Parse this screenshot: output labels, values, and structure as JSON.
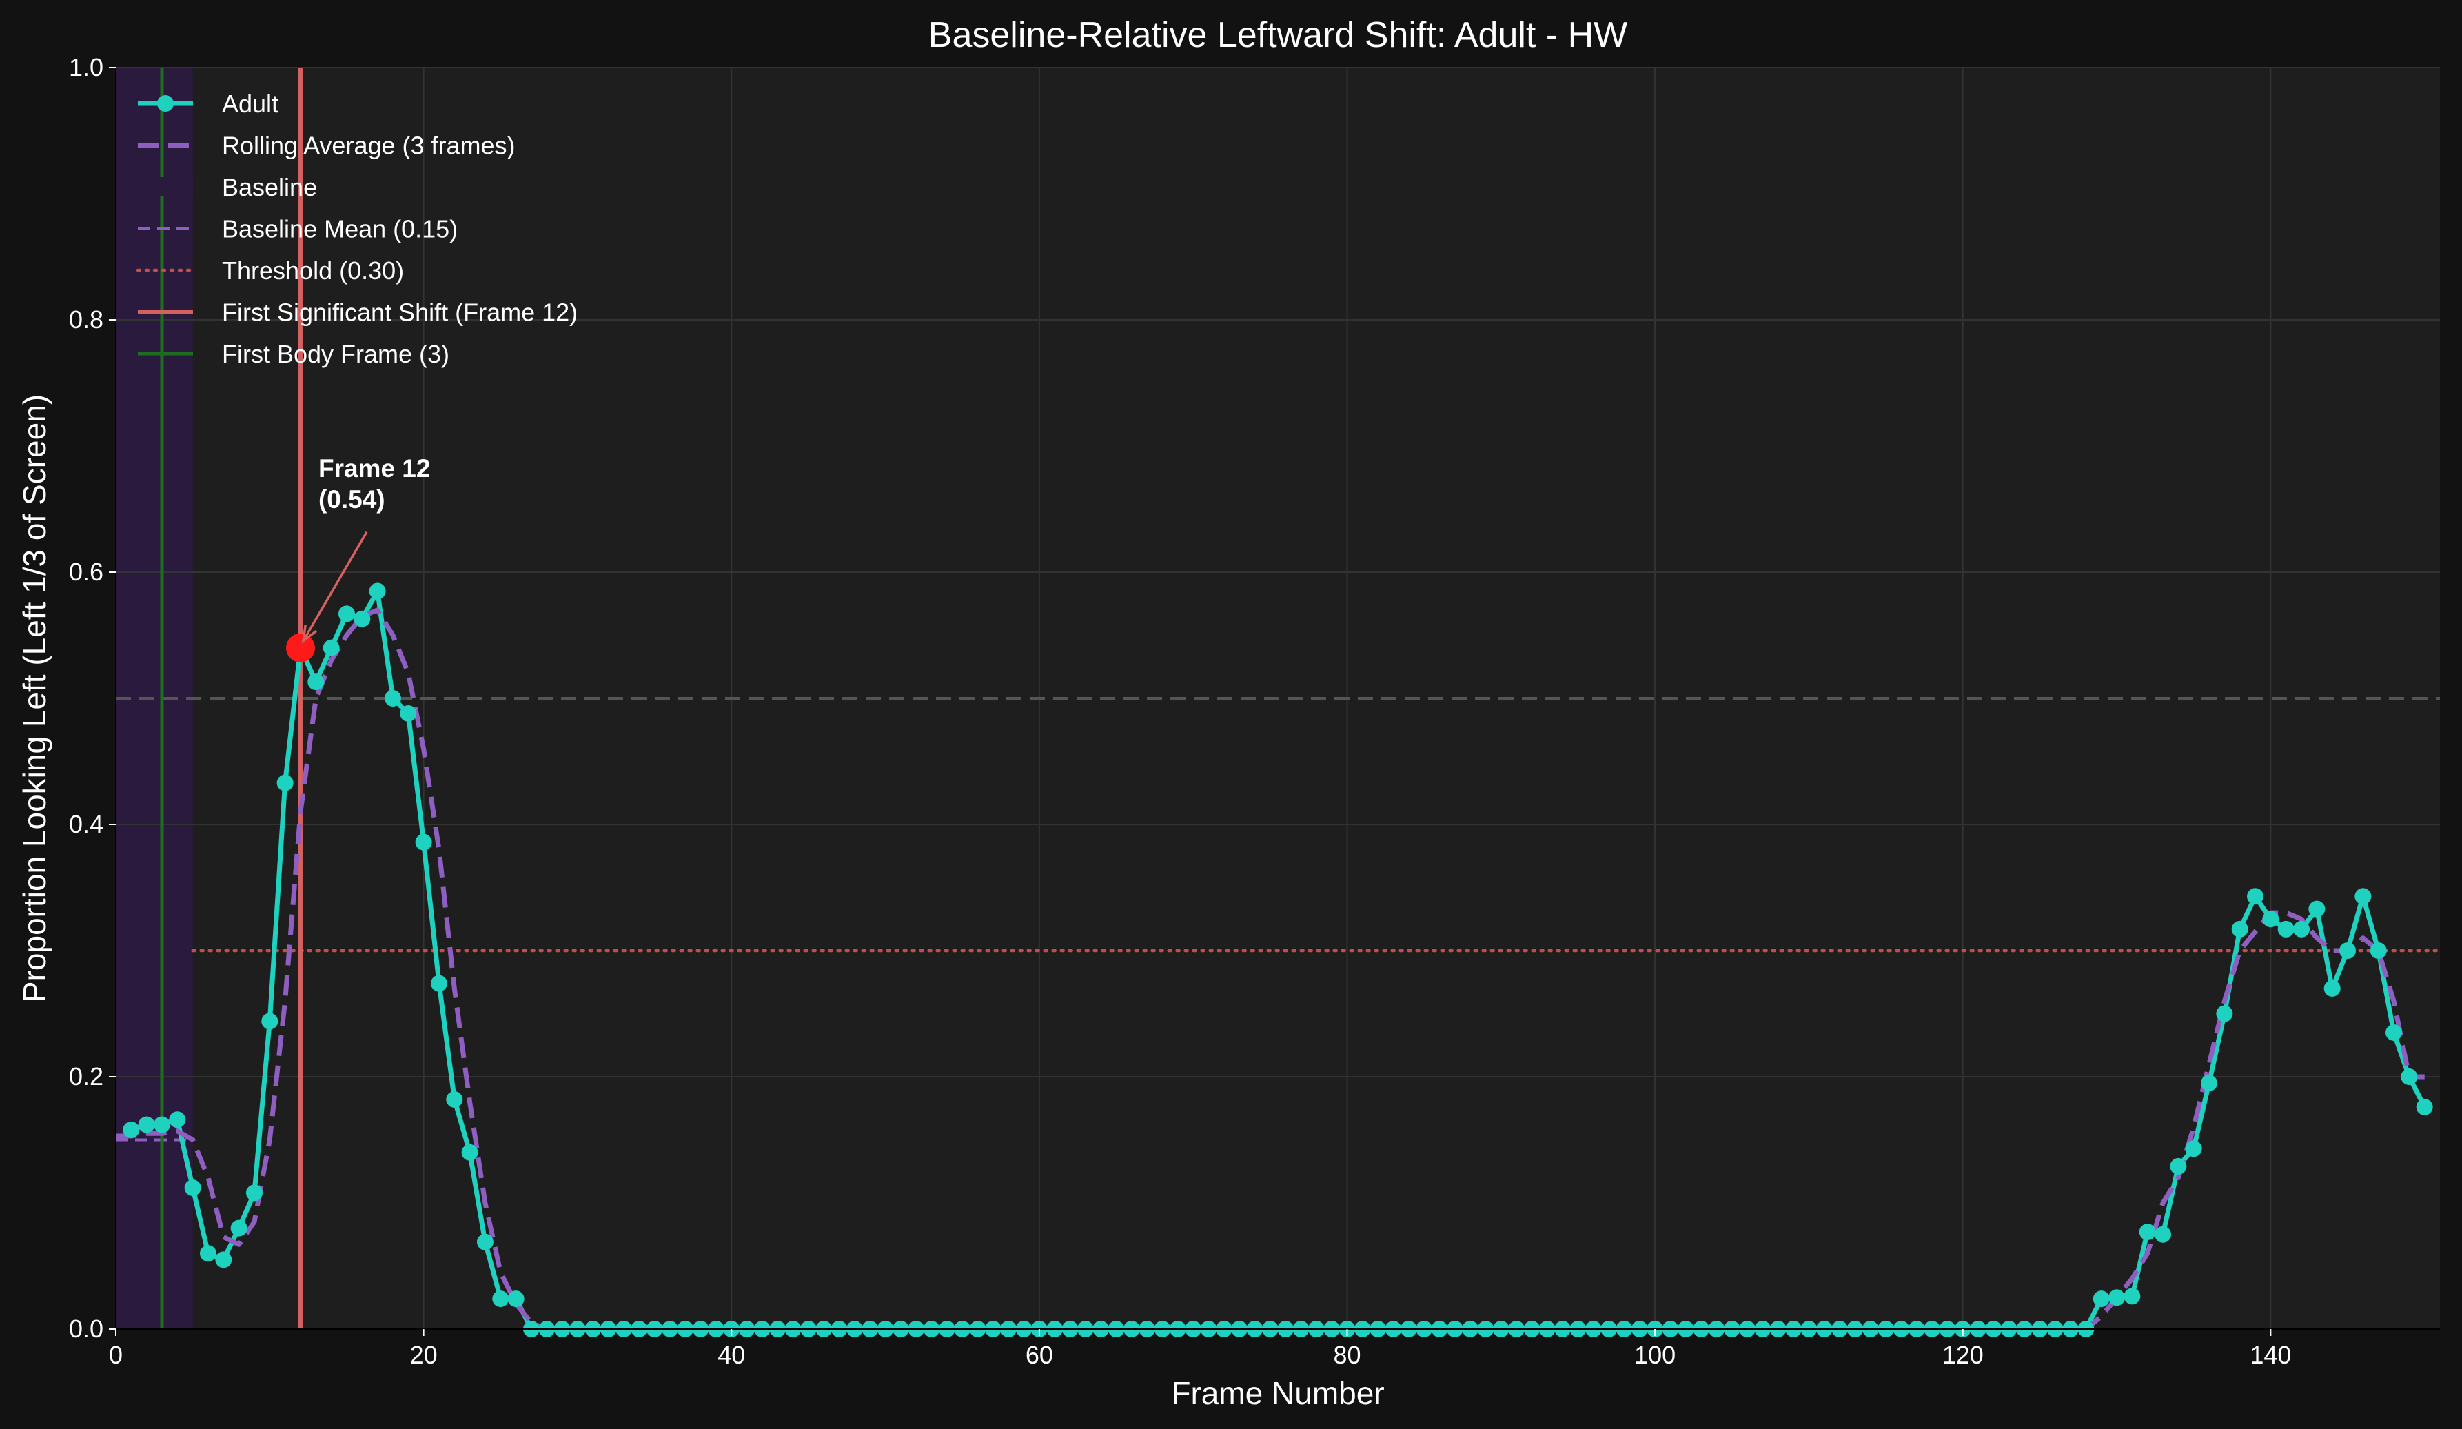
{
  "chart_data": {
    "type": "line",
    "title": "Baseline-Relative Leftward Shift: Adult - HW",
    "xlabel": "Frame Number",
    "ylabel": "Proportion Looking Left (Left 1/3 of Screen)",
    "xlim": [
      0,
      151
    ],
    "ylim": [
      0,
      1.0
    ],
    "xticks": [
      0,
      20,
      40,
      60,
      80,
      100,
      120,
      140
    ],
    "yticks": [
      0.0,
      0.2,
      0.4,
      0.6,
      0.8,
      1.0
    ],
    "xtick_labels": [
      "0",
      "20",
      "40",
      "60",
      "80",
      "100",
      "120",
      "140"
    ],
    "ytick_labels": [
      "0.0",
      "0.2",
      "0.4",
      "0.6",
      "0.8",
      "1.0"
    ],
    "grid": true,
    "legend_position": "top-left",
    "colors": {
      "figure_bg": "#121212",
      "axes_bg": "#1e1e1e",
      "series": "#1fd1bf",
      "rolling": "#8e5fc1",
      "baseline_span": "#2a1a3e",
      "baseline_mean": "#8e5fc1",
      "threshold": "#c0504d",
      "first_shift": "#d46060",
      "first_body": "#1f6e1f",
      "marker_highlight": "#ff1a1a",
      "grid": "#333333",
      "reference": "#555555"
    },
    "baseline_span": [
      0,
      5
    ],
    "baseline_mean": 0.15,
    "threshold": 0.3,
    "threshold_start": 5,
    "reference_line": 0.5,
    "first_shift_frame": 12,
    "first_body_frame": 3,
    "legend": [
      "Adult",
      "Rolling Average (3 frames)",
      "Baseline",
      "Baseline Mean (0.15)",
      "Threshold (0.30)",
      "First Significant Shift (Frame 12)",
      "First Body Frame (3)"
    ],
    "annotation": {
      "line1": "Frame 12",
      "line2": "(0.54)",
      "x": 12,
      "y": 0.54
    },
    "series": [
      {
        "name": "Adult",
        "x": [
          1,
          2,
          3,
          4,
          5,
          6,
          7,
          8,
          9,
          10,
          11,
          12,
          13,
          14,
          15,
          16,
          17,
          18,
          19,
          20,
          21,
          22,
          23,
          24,
          25,
          26,
          27,
          28,
          29,
          30,
          31,
          32,
          33,
          34,
          35,
          36,
          37,
          38,
          39,
          40,
          41,
          42,
          43,
          44,
          45,
          46,
          47,
          48,
          49,
          50,
          51,
          52,
          53,
          54,
          55,
          56,
          57,
          58,
          59,
          60,
          61,
          62,
          63,
          64,
          65,
          66,
          67,
          68,
          69,
          70,
          71,
          72,
          73,
          74,
          75,
          76,
          77,
          78,
          79,
          80,
          81,
          82,
          83,
          84,
          85,
          86,
          87,
          88,
          89,
          90,
          91,
          92,
          93,
          94,
          95,
          96,
          97,
          98,
          99,
          100,
          101,
          102,
          103,
          104,
          105,
          106,
          107,
          108,
          109,
          110,
          111,
          112,
          113,
          114,
          115,
          116,
          117,
          118,
          119,
          120,
          121,
          122,
          123,
          124,
          125,
          126,
          127,
          128,
          129,
          130,
          131,
          132,
          133,
          134,
          135,
          136,
          137,
          138,
          139,
          140,
          141,
          142,
          143,
          144,
          145,
          146,
          147,
          148,
          149,
          150
        ],
        "y": [
          0.158,
          0.162,
          0.162,
          0.166,
          0.112,
          0.06,
          0.055,
          0.08,
          0.108,
          0.244,
          0.433,
          0.54,
          0.513,
          0.54,
          0.567,
          0.563,
          0.585,
          0.5,
          0.488,
          0.386,
          0.274,
          0.182,
          0.14,
          0.069,
          0.024,
          0.024,
          0.0,
          0.0,
          0.0,
          0.0,
          0.0,
          0.0,
          0.0,
          0.0,
          0.0,
          0.0,
          0.0,
          0.0,
          0.0,
          0.0,
          0.0,
          0.0,
          0.0,
          0.0,
          0.0,
          0.0,
          0.0,
          0.0,
          0.0,
          0.0,
          0.0,
          0.0,
          0.0,
          0.0,
          0.0,
          0.0,
          0.0,
          0.0,
          0.0,
          0.0,
          0.0,
          0.0,
          0.0,
          0.0,
          0.0,
          0.0,
          0.0,
          0.0,
          0.0,
          0.0,
          0.0,
          0.0,
          0.0,
          0.0,
          0.0,
          0.0,
          0.0,
          0.0,
          0.0,
          0.0,
          0.0,
          0.0,
          0.0,
          0.0,
          0.0,
          0.0,
          0.0,
          0.0,
          0.0,
          0.0,
          0.0,
          0.0,
          0.0,
          0.0,
          0.0,
          0.0,
          0.0,
          0.0,
          0.0,
          0.0,
          0.0,
          0.0,
          0.0,
          0.0,
          0.0,
          0.0,
          0.0,
          0.0,
          0.0,
          0.0,
          0.0,
          0.0,
          0.0,
          0.0,
          0.0,
          0.0,
          0.0,
          0.0,
          0.0,
          0.0,
          0.0,
          0.0,
          0.0,
          0.0,
          0.0,
          0.0,
          0.0,
          0.0,
          0.024,
          0.025,
          0.026,
          0.077,
          0.075,
          0.129,
          0.143,
          0.195,
          0.25,
          0.317,
          0.343,
          0.325,
          0.317,
          0.317,
          0.333,
          0.27,
          0.3,
          0.343,
          0.3,
          0.235,
          0.2,
          0.176
        ]
      },
      {
        "name": "Rolling Average (3 frames)",
        "x": [
          0,
          1,
          2,
          3,
          4,
          5,
          6,
          7,
          8,
          9,
          10,
          11,
          12,
          13,
          14,
          15,
          16,
          17,
          18,
          19,
          20,
          21,
          22,
          23,
          24,
          25,
          26,
          27,
          28,
          127,
          128,
          129,
          130,
          131,
          132,
          133,
          134,
          135,
          136,
          137,
          138,
          139,
          140,
          141,
          142,
          143,
          144,
          145,
          146,
          147,
          148,
          149,
          150
        ],
        "y": [
          0.153,
          0.153,
          0.155,
          0.155,
          0.157,
          0.15,
          0.12,
          0.073,
          0.067,
          0.085,
          0.15,
          0.26,
          0.41,
          0.5,
          0.53,
          0.55,
          0.565,
          0.57,
          0.55,
          0.52,
          0.46,
          0.38,
          0.27,
          0.18,
          0.1,
          0.045,
          0.02,
          0.005,
          0.0,
          0.0,
          0.0,
          0.01,
          0.025,
          0.04,
          0.06,
          0.1,
          0.12,
          0.16,
          0.21,
          0.26,
          0.3,
          0.315,
          0.33,
          0.33,
          0.325,
          0.31,
          0.3,
          0.3,
          0.31,
          0.3,
          0.26,
          0.2,
          0.2
        ]
      }
    ]
  }
}
